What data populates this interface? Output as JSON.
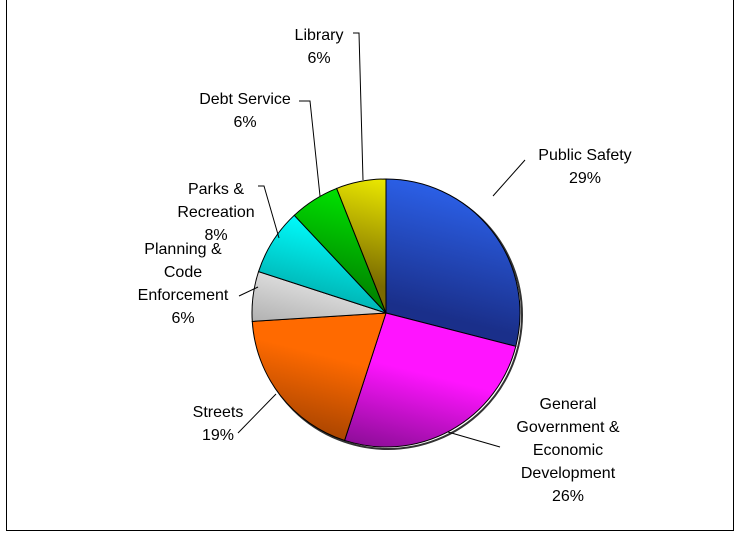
{
  "chart_data": {
    "type": "pie",
    "slices": [
      {
        "name": "Public Safety",
        "lines": [
          "Public Safety"
        ],
        "pct_label": "29%",
        "value": 29,
        "color": "#2b5fe6",
        "dark": "#1a2f8a"
      },
      {
        "name": "General Government & Economic Development",
        "lines": [
          "General",
          "Government &",
          "Economic",
          "Development"
        ],
        "pct_label": "26%",
        "value": 26,
        "color": "#ff14ff",
        "dark": "#5a0a6a"
      },
      {
        "name": "Streets",
        "lines": [
          "Streets"
        ],
        "pct_label": "19%",
        "value": 19,
        "color": "#ff6a00",
        "dark": "#7a3000"
      },
      {
        "name": "Planning & Code Enforcement",
        "lines": [
          "Planning &",
          "Code",
          "Enforcement"
        ],
        "pct_label": "6%",
        "value": 6,
        "color": "#e8e8e8",
        "dark": "#808080"
      },
      {
        "name": "Parks & Recreation",
        "lines": [
          "Parks &",
          "Recreation"
        ],
        "pct_label": "8%",
        "value": 8,
        "color": "#00ffff",
        "dark": "#008a8a"
      },
      {
        "name": "Debt Service",
        "lines": [
          "Debt Service"
        ],
        "pct_label": "6%",
        "value": 6,
        "color": "#00ee00",
        "dark": "#007a00"
      },
      {
        "name": "Library",
        "lines": [
          "Library"
        ],
        "pct_label": "6%",
        "value": 6,
        "color": "#ffff00",
        "dark": "#7a6a00"
      }
    ]
  }
}
